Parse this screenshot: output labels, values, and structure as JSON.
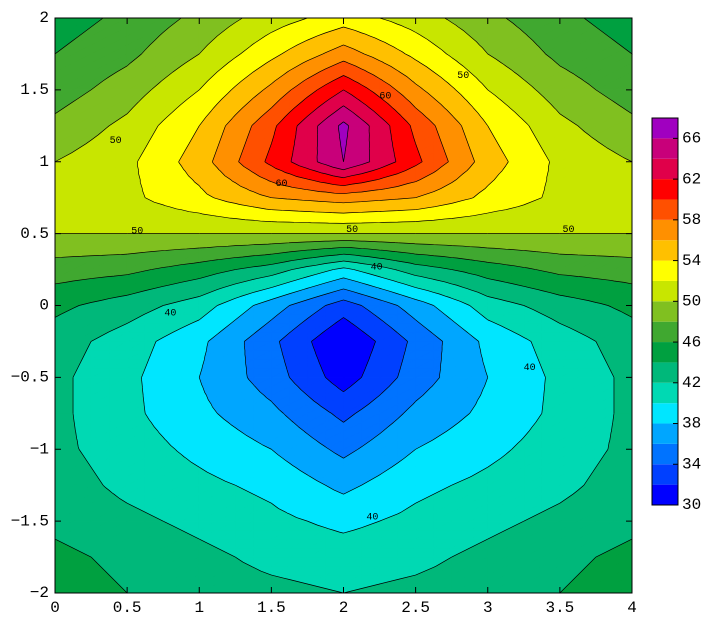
{
  "chart_data": {
    "type": "contour",
    "x": [
      0,
      0.5,
      1,
      1.5,
      2,
      2.5,
      3,
      3.5,
      4
    ],
    "y": [
      -2,
      -1.75,
      -1.5,
      -1.25,
      -1,
      -0.75,
      -0.5,
      -0.25,
      0,
      0.25,
      0.5,
      0.75,
      1,
      1.25,
      1.5,
      1.75,
      2
    ],
    "z": [
      [
        45,
        44,
        43,
        42.5,
        42,
        42.5,
        43,
        44,
        45
      ],
      [
        44.5,
        43.5,
        42.5,
        41.5,
        41,
        41.5,
        42.5,
        43.5,
        44.5
      ],
      [
        43.5,
        42.5,
        41.5,
        40.5,
        39.5,
        40.5,
        41.5,
        42.5,
        43.5
      ],
      [
        43,
        41.5,
        40.5,
        39.5,
        37.5,
        39.5,
        40.5,
        41.5,
        43
      ],
      [
        42.5,
        41,
        39.5,
        38,
        35.5,
        38,
        39.5,
        41,
        42.5
      ],
      [
        42.5,
        40.5,
        38.5,
        36.5,
        33.5,
        36.5,
        38.5,
        40.5,
        42.5
      ],
      [
        42.5,
        40.5,
        38,
        35,
        31,
        35,
        38,
        40.5,
        42.5
      ],
      [
        43,
        41,
        38.5,
        34.5,
        30,
        34.5,
        38.5,
        41,
        43
      ],
      [
        44.5,
        43,
        41,
        37,
        33,
        37,
        41,
        43,
        44.5
      ],
      [
        47,
        46.5,
        45,
        43,
        39.5,
        43,
        45,
        46.5,
        47
      ],
      [
        50,
        50,
        50,
        50,
        50,
        50,
        50,
        50,
        50
      ],
      [
        51,
        51.5,
        53.5,
        56,
        57,
        56,
        53.5,
        51.5,
        51
      ],
      [
        50,
        51.5,
        55,
        60.5,
        66,
        60.5,
        55,
        51.5,
        50
      ],
      [
        48.5,
        50.5,
        54,
        59.5,
        66.5,
        59.5,
        54,
        50.5,
        48.5
      ],
      [
        47,
        49,
        52,
        56.5,
        62,
        56.5,
        52,
        49,
        47
      ],
      [
        46,
        47.5,
        50,
        53.5,
        57,
        53.5,
        50,
        47.5,
        46
      ],
      [
        45,
        46.5,
        48.5,
        51,
        53,
        51,
        48.5,
        46.5,
        45
      ]
    ],
    "levels": [
      30,
      32,
      34,
      36,
      38,
      40,
      42,
      44,
      46,
      48,
      50,
      52,
      54,
      56,
      58,
      60,
      62,
      64,
      66,
      68
    ],
    "colors": [
      "#0000ff",
      "#0040ff",
      "#0073ff",
      "#00a6ff",
      "#00e6ff",
      "#00d9b3",
      "#00b87a",
      "#00a040",
      "#40a830",
      "#80c020",
      "#c8e600",
      "#ffff00",
      "#ffc000",
      "#ff9000",
      "#ff5000",
      "#ff0000",
      "#e0004a",
      "#c8007a",
      "#a000c0"
    ],
    "colorbar_ticks": [
      30,
      34,
      38,
      42,
      46,
      50,
      54,
      58,
      62,
      66
    ],
    "xlim": [
      0,
      4
    ],
    "ylim": [
      -2,
      2
    ],
    "xticks": [
      0,
      0.5,
      1,
      1.5,
      2,
      2.5,
      3,
      3.5,
      4
    ],
    "yticks": [
      {
        "value": -2,
        "label": "−2"
      },
      {
        "value": -1.5,
        "label": "−1.5"
      },
      {
        "value": -1,
        "label": "−1"
      },
      {
        "value": -0.5,
        "label": "−0.5"
      },
      0,
      0.5,
      1,
      1.5,
      2
    ],
    "contour_labels": [
      {
        "text": "50",
        "x": 2.83,
        "y": 1.6
      },
      {
        "text": "60",
        "x": 2.29,
        "y": 1.46
      },
      {
        "text": "50",
        "x": 0.42,
        "y": 1.15
      },
      {
        "text": "60",
        "x": 1.57,
        "y": 0.85
      },
      {
        "text": "50",
        "x": 0.57,
        "y": 0.52
      },
      {
        "text": "50",
        "x": 2.06,
        "y": 0.53
      },
      {
        "text": "50",
        "x": 3.56,
        "y": 0.53
      },
      {
        "text": "40",
        "x": 2.23,
        "y": 0.27
      },
      {
        "text": "40",
        "x": 0.8,
        "y": -0.05
      },
      {
        "text": "40",
        "x": 3.29,
        "y": -0.43
      },
      {
        "text": "40",
        "x": 2.2,
        "y": -1.47
      }
    ]
  }
}
